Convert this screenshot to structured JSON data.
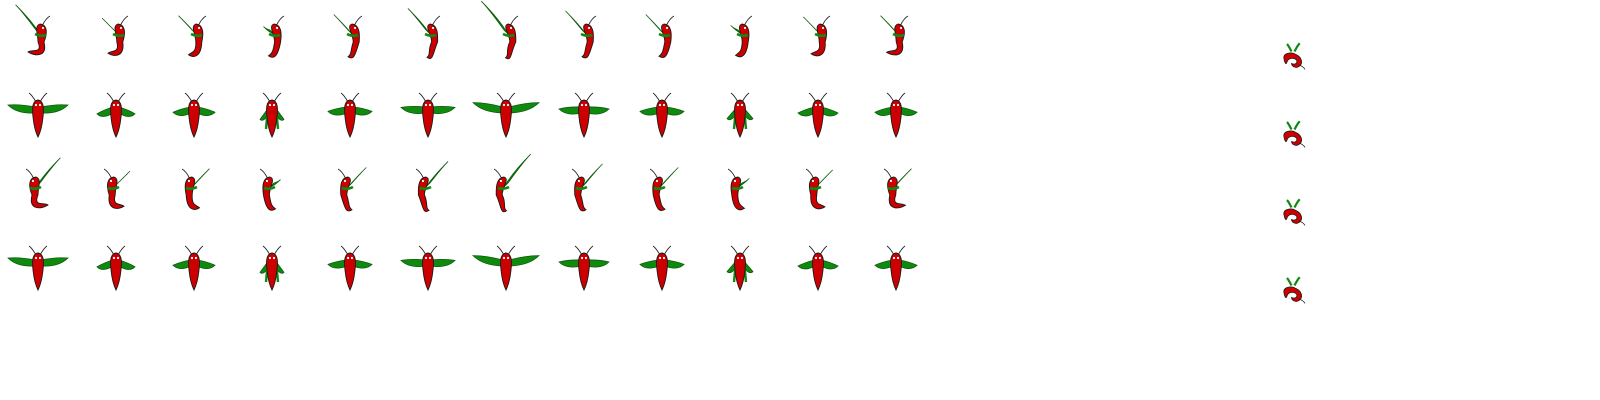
{
  "sprite_sheet": {
    "columns": 12,
    "rows": [
      {
        "view": "side-curled",
        "frames": 12
      },
      {
        "view": "top-down",
        "frames": 12
      },
      {
        "view": "side-curled-mirrored",
        "frames": 12
      },
      {
        "view": "top-down",
        "frames": 12
      }
    ],
    "side_column": {
      "frames": 4,
      "view": "curled-small"
    },
    "colors": {
      "body": "#cc0000",
      "body_outline": "#1a1a1a",
      "wings": "#0f8a0f",
      "wings_outline": "#0a5c0a",
      "antenna": "#222222",
      "eye": "#ffffff",
      "background": "#ffffff"
    },
    "wing_phase": [
      1.0,
      0.45,
      0.55,
      0.1,
      0.6,
      0.85,
      1.15,
      0.75,
      0.6,
      0.15,
      0.5,
      0.55
    ],
    "body_curl": [
      1.0,
      0.8,
      0.55,
      0.35,
      0.2,
      0.1,
      0.05,
      0.2,
      0.3,
      0.45,
      0.7,
      0.95
    ]
  }
}
